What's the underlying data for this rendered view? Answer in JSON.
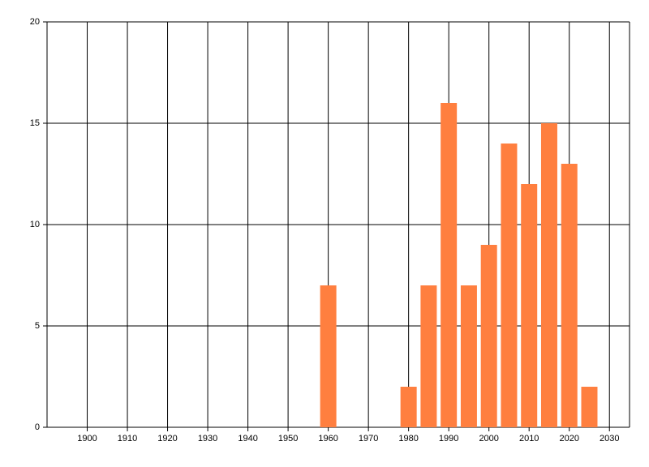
{
  "chart_data": {
    "type": "bar",
    "x": [
      1960,
      1980,
      1985,
      1990,
      1995,
      2000,
      2005,
      2010,
      2015,
      2020,
      2025
    ],
    "values": [
      7,
      2,
      7,
      16,
      7,
      9,
      14,
      12,
      15,
      13,
      2
    ],
    "color": "#ff7f3f",
    "xlim": [
      1890,
      2035
    ],
    "xticks": [
      1900,
      1910,
      1920,
      1930,
      1940,
      1950,
      1960,
      1970,
      1980,
      1990,
      2000,
      2010,
      2020,
      2030
    ],
    "ylim": [
      0,
      20
    ],
    "yticks": [
      0,
      5,
      10,
      15,
      20
    ],
    "grid": true
  }
}
